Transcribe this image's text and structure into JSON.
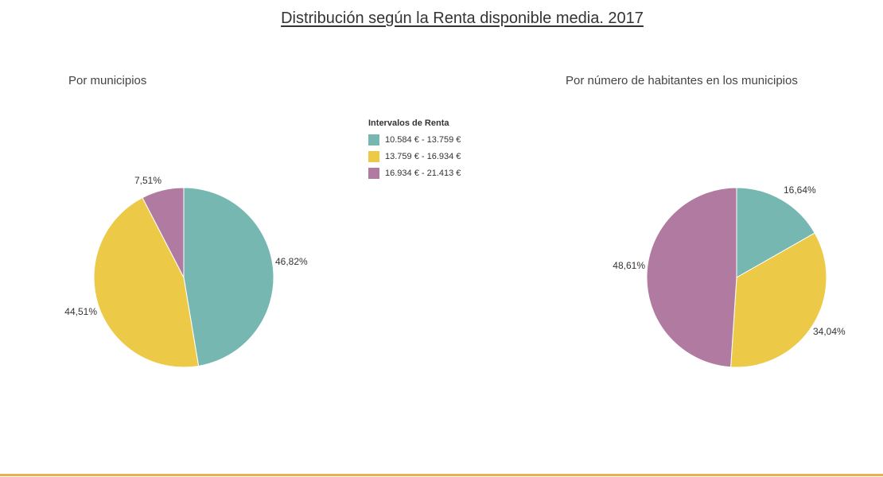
{
  "title": "Distribución según la Renta disponible media. 2017",
  "legend": {
    "title": "Intervalos de Renta",
    "items": [
      {
        "label": "10.584 € - 13.759 €",
        "color": "#76b7b2"
      },
      {
        "label": "13.759 € - 16.934 €",
        "color": "#edc948"
      },
      {
        "label": "16.934 € - 21.413 €",
        "color": "#b07aa1"
      }
    ]
  },
  "chart_data": [
    {
      "type": "pie",
      "title": "Por municipios",
      "categories": [
        "10.584 € - 13.759 €",
        "13.759 € - 16.934 €",
        "16.934 € - 21.413 €"
      ],
      "values": [
        46.82,
        44.51,
        7.51
      ],
      "labels": [
        "46,82%",
        "44,51%",
        "7,51%"
      ],
      "colors": [
        "#76b7b2",
        "#edc948",
        "#b07aa1"
      ]
    },
    {
      "type": "pie",
      "title": "Por número de habitantes en los municipios",
      "categories": [
        "10.584 € - 13.759 €",
        "13.759 € - 16.934 €",
        "16.934 € - 21.413 €"
      ],
      "values": [
        16.64,
        34.04,
        48.61
      ],
      "labels": [
        "16,64%",
        "34,04%",
        "48,61%"
      ],
      "colors": [
        "#76b7b2",
        "#edc948",
        "#b07aa1"
      ]
    }
  ]
}
